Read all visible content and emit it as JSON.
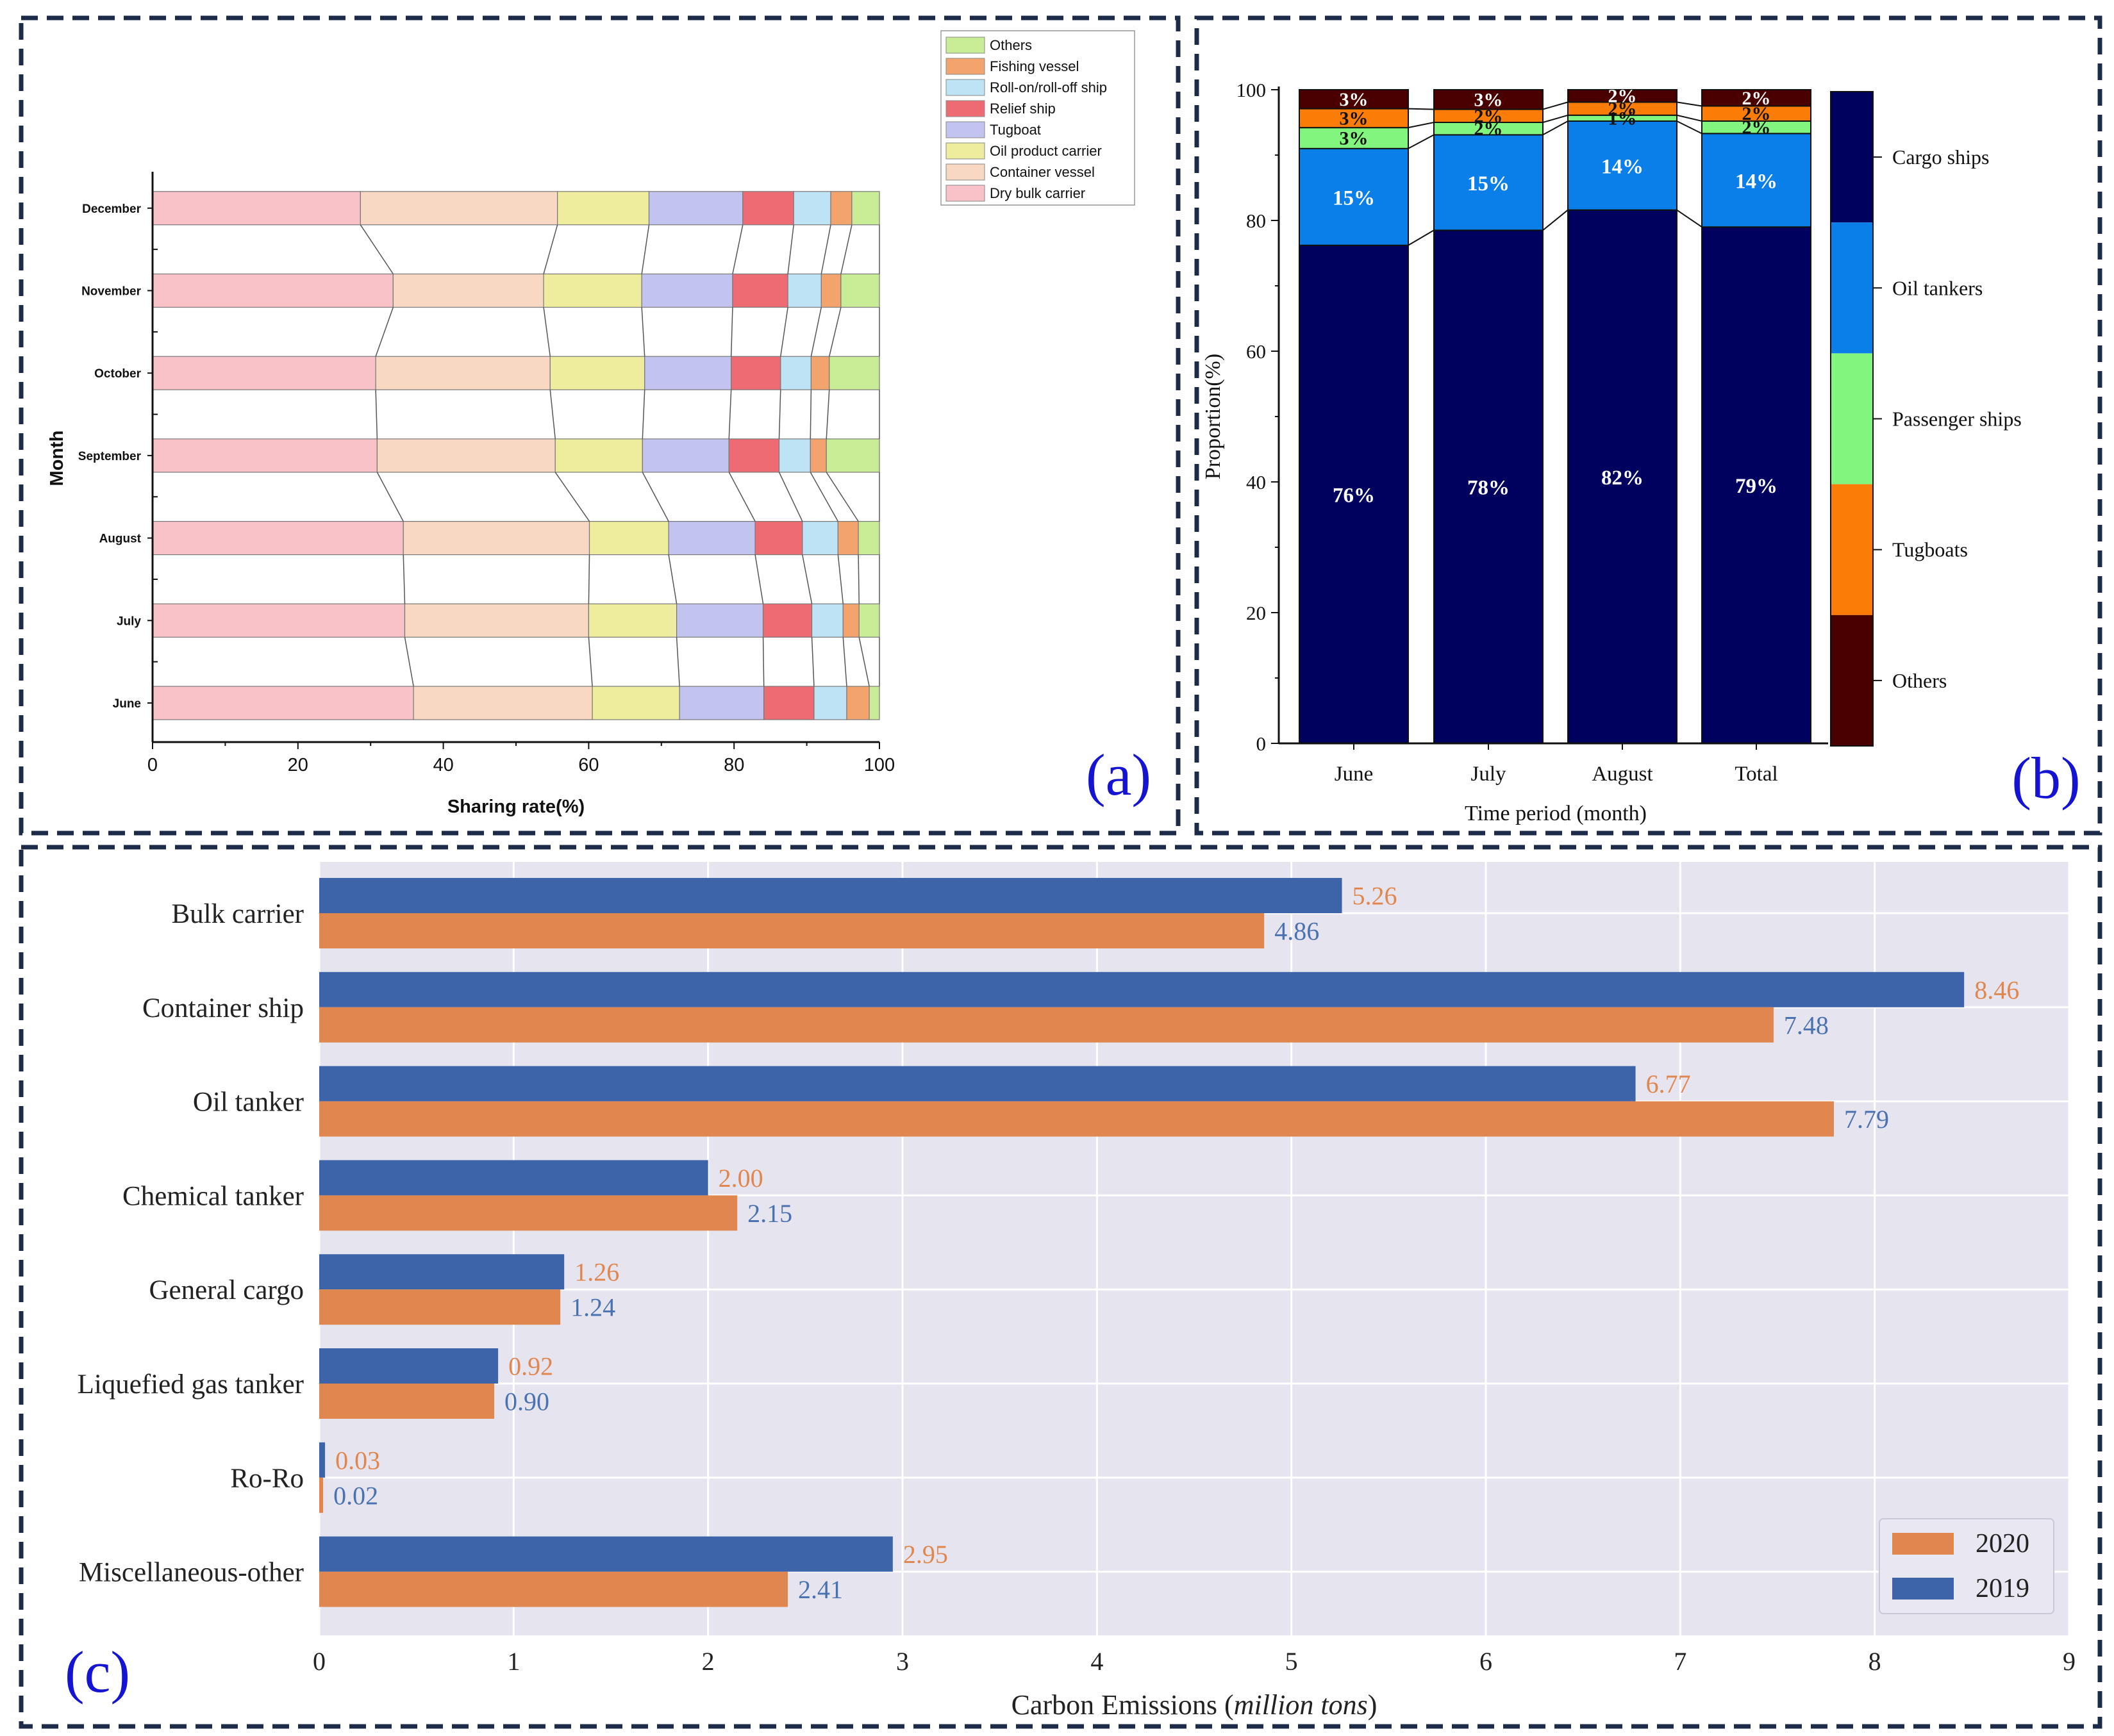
{
  "panels": {
    "a": {
      "panel_label": "(a)",
      "chart_data": {
        "type": "bar",
        "stacked": true,
        "orientation": "horizontal",
        "xlabel": "Sharing rate(%)",
        "ylabel": "Month",
        "xlim": [
          0,
          100
        ],
        "xticks": [
          0,
          20,
          40,
          60,
          80,
          100
        ],
        "categories": [
          "June",
          "July",
          "August",
          "September",
          "October",
          "November",
          "December"
        ],
        "series": [
          {
            "name": "Dry bulk carrier",
            "color": "#f9c2c8",
            "values": [
              35.9,
              34.7,
              34.5,
              30.9,
              30.7,
              33.1,
              28.6
            ]
          },
          {
            "name": "Container vessel",
            "color": "#f8d8c3",
            "values": [
              24.6,
              25.3,
              25.6,
              24.5,
              24.0,
              20.7,
              27.1
            ]
          },
          {
            "name": "Oil product carrier",
            "color": "#eded9d",
            "values": [
              12.0,
              12.1,
              10.9,
              12.0,
              13.0,
              13.5,
              12.6
            ]
          },
          {
            "name": "Tugboat",
            "color": "#c3c3ef",
            "values": [
              11.6,
              11.9,
              11.9,
              11.9,
              11.9,
              12.5,
              12.9
            ]
          },
          {
            "name": "Relief ship",
            "color": "#ee6b74",
            "values": [
              6.9,
              6.7,
              6.5,
              6.9,
              6.8,
              7.6,
              7.0
            ]
          },
          {
            "name": "Roll-on/roll-off ship",
            "color": "#bde3f5",
            "values": [
              4.5,
              4.3,
              4.9,
              4.3,
              4.2,
              4.6,
              5.1
            ]
          },
          {
            "name": "Fishing vessel",
            "color": "#f3a46c",
            "values": [
              3.1,
              2.2,
              2.8,
              2.2,
              2.5,
              2.7,
              2.9
            ]
          },
          {
            "name": "Others",
            "color": "#c9ec97",
            "values": [
              1.4,
              2.8,
              2.9,
              7.3,
              6.9,
              5.3,
              3.8
            ]
          }
        ],
        "legend_order": [
          "Others",
          "Fishing vessel",
          "Roll-on/roll-off ship",
          "Relief ship",
          "Tugboat",
          "Oil product carrier",
          "Container vessel",
          "Dry bulk carrier"
        ],
        "legend_position": "top-right"
      }
    },
    "b": {
      "panel_label": "(b)",
      "chart_data": {
        "type": "bar",
        "stacked": true,
        "orientation": "vertical",
        "xlabel": "Time period (month)",
        "ylabel": "Proportion(%)",
        "ylim": [
          0,
          100
        ],
        "yticks": [
          0,
          20,
          40,
          60,
          80,
          100
        ],
        "categories": [
          "June",
          "July",
          "August",
          "Total"
        ],
        "series": [
          {
            "name": "Cargo ships",
            "color": "#00005f",
            "values": [
              76.2,
              78.5,
              81.6,
              79.0
            ],
            "labels": [
              "76%",
              "78%",
              "82%",
              "79%"
            ]
          },
          {
            "name": "Oil tankers",
            "color": "#0a7fea",
            "values": [
              14.8,
              14.6,
              13.6,
              14.3
            ],
            "labels": [
              "15%",
              "15%",
              "14%",
              "14%"
            ]
          },
          {
            "name": "Passenger ships",
            "color": "#82f57f",
            "values": [
              3.2,
              1.9,
              0.9,
              1.9
            ],
            "labels": [
              "3%",
              "2%",
              "1%",
              "2%"
            ]
          },
          {
            "name": "Tugboats",
            "color": "#fb7d07",
            "values": [
              2.9,
              2.0,
              2.0,
              2.3
            ],
            "labels": [
              "3%",
              "2%",
              "2%",
              "2%"
            ]
          },
          {
            "name": "Others",
            "color": "#4b0000",
            "values": [
              2.9,
              3.0,
              1.9,
              2.5
            ],
            "labels": [
              "3%",
              "3%",
              "2%",
              "2%"
            ]
          }
        ],
        "legend_order": [
          "Cargo ships",
          "Oil tankers",
          "Passenger ships",
          "Tugboats",
          "Others"
        ],
        "legend_position": "right"
      }
    },
    "c": {
      "panel_label": "(c)",
      "chart_data": {
        "type": "bar",
        "orientation": "horizontal",
        "xlabel_prefix": "Carbon Emissions (",
        "xlabel_unit": "million tons",
        "xlabel_suffix": ")",
        "xlim": [
          0,
          9
        ],
        "xticks": [
          0,
          1,
          2,
          3,
          4,
          5,
          6,
          7,
          8,
          9
        ],
        "categories": [
          "Bulk carrier",
          "Container ship",
          "Oil tanker",
          "Chemical tanker",
          "General cargo",
          "Liquefied gas tanker",
          "Ro-Ro",
          "Miscellaneous-other"
        ],
        "series": [
          {
            "name": "2019",
            "color": "#3d64a9",
            "label_color": "#4a72b0",
            "values": [
              5.26,
              8.46,
              6.77,
              2.0,
              1.26,
              0.92,
              0.03,
              2.95
            ],
            "labels": [
              "5.26",
              "8.46",
              "6.77",
              "2.00",
              "1.26",
              "0.92",
              "0.03",
              "2.95"
            ]
          },
          {
            "name": "2020",
            "color": "#e0864f",
            "label_color": "#e0864f",
            "values": [
              4.86,
              7.48,
              7.79,
              2.15,
              1.24,
              0.9,
              0.02,
              2.41
            ],
            "labels": [
              "4.86",
              "7.48",
              "7.79",
              "2.15",
              "1.24",
              "0.90",
              "0.02",
              "2.41"
            ]
          }
        ],
        "legend_order": [
          "2020",
          "2019"
        ],
        "legend_position": "bottom-right",
        "grid": true,
        "background": "#e6e5ef"
      }
    }
  },
  "colors": {
    "frame": "#1c2b47",
    "panel_label": "#1414d2"
  }
}
